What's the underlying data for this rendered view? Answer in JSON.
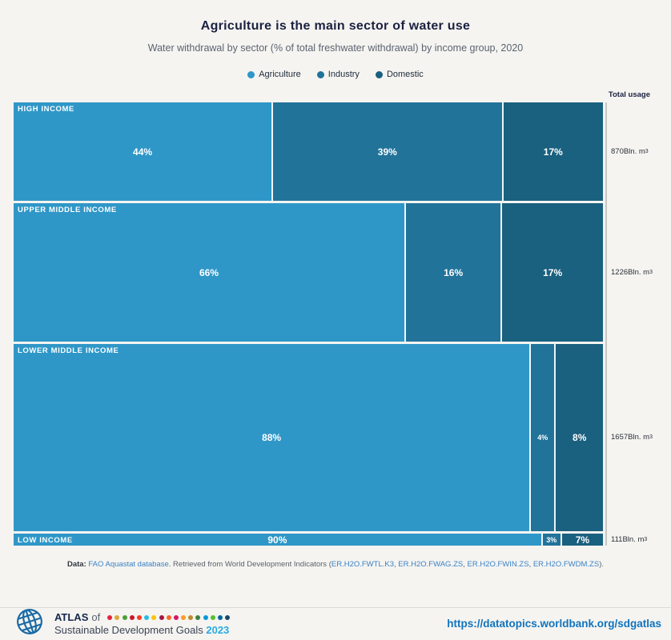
{
  "header": {
    "title": "Agriculture is the main sector of water use",
    "subtitle": "Water withdrawal by sector (% of total freshwater withdrawal) by income group, 2020"
  },
  "chart_data": {
    "type": "mosaic",
    "title": "Agriculture is the main sector of water use",
    "subtitle": "Water withdrawal by sector (% of total freshwater withdrawal) by income group, 2020",
    "unit": "%",
    "series": [
      "Agriculture",
      "Industry",
      "Domestic"
    ],
    "series_colors": [
      "#2f97c8",
      "#22739a",
      "#1a607f"
    ],
    "axis_header": "Total usage",
    "total_suffix": "Bln. m",
    "total_sup": "3",
    "rows": [
      {
        "label": "HIGH INCOME",
        "values": [
          44,
          39,
          17
        ],
        "total": 870
      },
      {
        "label": "UPPER MIDDLE INCOME",
        "values": [
          66,
          16,
          17
        ],
        "total": 1226
      },
      {
        "label": "LOWER MIDDLE INCOME",
        "values": [
          88,
          4,
          8
        ],
        "total": 1657
      },
      {
        "label": "LOW INCOME",
        "values": [
          90,
          3,
          7
        ],
        "total": 111
      }
    ],
    "layout": {
      "row_heights_proportional_to": "total",
      "legend_position": "top",
      "grid": false
    }
  },
  "footnote": {
    "label": "Data:",
    "source_link": "FAO Aquastat database",
    "middle": ". Retrieved from World Development Indicators (",
    "indicator_links": [
      "ER.H2O.FWTL.K3",
      "ER.H2O.FWAG.ZS",
      "ER.H2O.FWIN.ZS",
      "ER.H2O.FWDM.ZS"
    ],
    "separator": ", ",
    "suffix": ")."
  },
  "footer": {
    "atlas": "ATLAS",
    "of": "of",
    "line2": "Sustainable Development Goals",
    "year": "2023",
    "url": "https://datatopics.worldbank.org/sdgatlas",
    "sdg_colors": [
      "#e5243b",
      "#dda63a",
      "#4c9f38",
      "#c5192d",
      "#ff3a21",
      "#26bde2",
      "#fcc30b",
      "#a21942",
      "#fd6925",
      "#dd1367",
      "#fd9d24",
      "#bf8b2e",
      "#3f7e44",
      "#0a97d9",
      "#56c02b",
      "#00689d",
      "#19486a"
    ]
  },
  "colors": {
    "background": "#f5f4f1",
    "title_text": "#1b2140",
    "axis_line": "#c7c6c2",
    "link_blue": "#3b82c4",
    "url_blue": "#1173bd",
    "year_blue": "#29abe2"
  }
}
